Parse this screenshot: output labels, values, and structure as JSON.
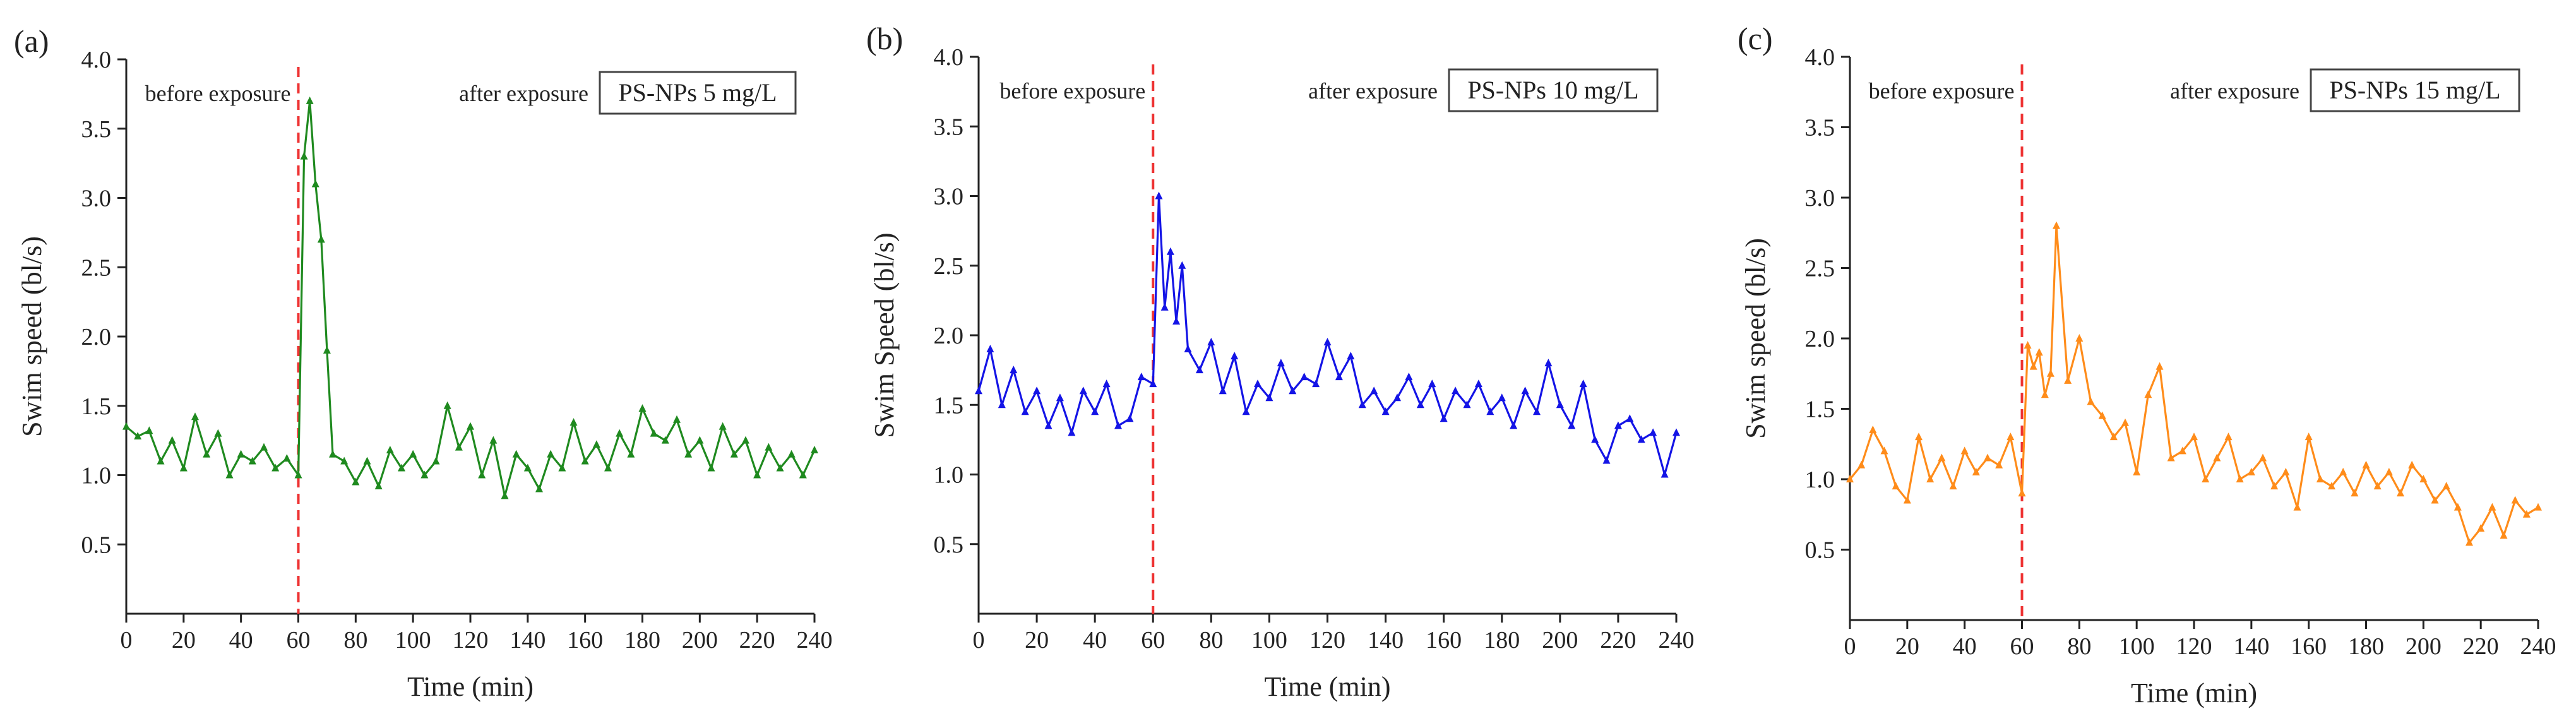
{
  "chart_data": [
    {
      "type": "line",
      "panel_label": "(a)",
      "title": "",
      "xlabel": "Time (min)",
      "ylabel": "Swim speed (bl/s)",
      "xlim": [
        0,
        240
      ],
      "ylim": [
        0,
        4.0
      ],
      "x_ticks": [
        0,
        20,
        40,
        60,
        80,
        100,
        120,
        140,
        160,
        180,
        200,
        220,
        240
      ],
      "y_ticks": [
        0.5,
        1.0,
        1.5,
        2.0,
        2.5,
        3.0,
        3.5,
        4.0
      ],
      "y_tick_labels": [
        "0.5",
        "1.0",
        "1.5",
        "2.0",
        "2.5",
        "3.0",
        "3.5",
        "4.0"
      ],
      "annotation_left": "before exposure",
      "annotation_right": "after exposure",
      "legend": "PS-NPs 5 mg/L",
      "exposure_time": 60,
      "color": "#1f8a1f",
      "series": [
        {
          "name": "PS-NPs 5 mg/L",
          "x": [
            0,
            4,
            8,
            12,
            16,
            20,
            24,
            28,
            32,
            36,
            40,
            44,
            48,
            52,
            56,
            60,
            62,
            64,
            66,
            68,
            70,
            72,
            76,
            80,
            84,
            88,
            92,
            96,
            100,
            104,
            108,
            112,
            116,
            120,
            124,
            128,
            132,
            136,
            140,
            144,
            148,
            152,
            156,
            160,
            164,
            168,
            172,
            176,
            180,
            184,
            188,
            192,
            196,
            200,
            204,
            208,
            212,
            216,
            220,
            224,
            228,
            232,
            236,
            240
          ],
          "values": [
            1.35,
            1.28,
            1.32,
            1.1,
            1.25,
            1.05,
            1.42,
            1.15,
            1.3,
            1.0,
            1.15,
            1.1,
            1.2,
            1.05,
            1.12,
            1.0,
            3.3,
            3.7,
            3.1,
            2.7,
            1.9,
            1.15,
            1.1,
            0.95,
            1.1,
            0.92,
            1.18,
            1.05,
            1.15,
            1.0,
            1.1,
            1.5,
            1.2,
            1.35,
            1.0,
            1.25,
            0.85,
            1.15,
            1.05,
            0.9,
            1.15,
            1.05,
            1.38,
            1.1,
            1.22,
            1.05,
            1.3,
            1.15,
            1.48,
            1.3,
            1.25,
            1.4,
            1.15,
            1.25,
            1.05,
            1.35,
            1.15,
            1.25,
            1.0,
            1.2,
            1.05,
            1.15,
            1.0,
            1.18
          ]
        }
      ]
    },
    {
      "type": "line",
      "panel_label": "(b)",
      "title": "",
      "xlabel": "Time (min)",
      "ylabel": "Swim Speed (bl/s)",
      "xlim": [
        0,
        240
      ],
      "ylim": [
        0,
        4.0
      ],
      "x_ticks": [
        0,
        20,
        40,
        60,
        80,
        100,
        120,
        140,
        160,
        180,
        200,
        220,
        240
      ],
      "y_ticks": [
        0.5,
        1.0,
        1.5,
        2.0,
        2.5,
        3.0,
        3.5,
        4.0
      ],
      "y_tick_labels": [
        "0.5",
        "1.0",
        "1.5",
        "2.0",
        "2.5",
        "3.0",
        "3.5",
        "4.0"
      ],
      "annotation_left": "before exposure",
      "annotation_right": "after exposure",
      "legend": "PS-NPs 10 mg/L",
      "exposure_time": 60,
      "color": "#1414e6",
      "series": [
        {
          "name": "PS-NPs 10 mg/L",
          "x": [
            0,
            4,
            8,
            12,
            16,
            20,
            24,
            28,
            32,
            36,
            40,
            44,
            48,
            52,
            56,
            60,
            62,
            64,
            66,
            68,
            70,
            72,
            76,
            80,
            84,
            88,
            92,
            96,
            100,
            104,
            108,
            112,
            116,
            120,
            124,
            128,
            132,
            136,
            140,
            144,
            148,
            152,
            156,
            160,
            164,
            168,
            172,
            176,
            180,
            184,
            188,
            192,
            196,
            200,
            204,
            208,
            212,
            216,
            220,
            224,
            228,
            232,
            236,
            240
          ],
          "values": [
            1.6,
            1.9,
            1.5,
            1.75,
            1.45,
            1.6,
            1.35,
            1.55,
            1.3,
            1.6,
            1.45,
            1.65,
            1.35,
            1.4,
            1.7,
            1.65,
            3.0,
            2.2,
            2.6,
            2.1,
            2.5,
            1.9,
            1.75,
            1.95,
            1.6,
            1.85,
            1.45,
            1.65,
            1.55,
            1.8,
            1.6,
            1.7,
            1.65,
            1.95,
            1.7,
            1.85,
            1.5,
            1.6,
            1.45,
            1.55,
            1.7,
            1.5,
            1.65,
            1.4,
            1.6,
            1.5,
            1.65,
            1.45,
            1.55,
            1.35,
            1.6,
            1.45,
            1.8,
            1.5,
            1.35,
            1.65,
            1.25,
            1.1,
            1.35,
            1.4,
            1.25,
            1.3,
            1.0,
            1.3
          ]
        }
      ]
    },
    {
      "type": "line",
      "panel_label": "(c)",
      "title": "",
      "xlabel": "Time (min)",
      "ylabel": "Swim speed (bl/s)",
      "xlim": [
        0,
        240
      ],
      "ylim": [
        0,
        4.0
      ],
      "x_ticks": [
        0,
        20,
        40,
        60,
        80,
        100,
        120,
        140,
        160,
        180,
        200,
        220,
        240
      ],
      "y_ticks": [
        0.5,
        1.0,
        1.5,
        2.0,
        2.5,
        3.0,
        3.5,
        4.0
      ],
      "y_tick_labels": [
        "0.5",
        "1.0",
        "1.5",
        "2.0",
        "2.5",
        "3.0",
        "3.5",
        "4.0"
      ],
      "annotation_left": "before exposure",
      "annotation_right": "after exposure",
      "legend": "PS-NPs 15 mg/L",
      "exposure_time": 60,
      "color": "#ff8c1a",
      "series": [
        {
          "name": "PS-NPs 15 mg/L",
          "x": [
            0,
            4,
            8,
            12,
            16,
            20,
            24,
            28,
            32,
            36,
            40,
            44,
            48,
            52,
            56,
            60,
            62,
            64,
            66,
            68,
            70,
            72,
            76,
            80,
            84,
            88,
            92,
            96,
            100,
            104,
            108,
            112,
            116,
            120,
            124,
            128,
            132,
            136,
            140,
            144,
            148,
            152,
            156,
            160,
            164,
            168,
            172,
            176,
            180,
            184,
            188,
            192,
            196,
            200,
            204,
            208,
            212,
            216,
            220,
            224,
            228,
            232,
            236,
            240
          ],
          "values": [
            1.0,
            1.1,
            1.35,
            1.2,
            0.95,
            0.85,
            1.3,
            1.0,
            1.15,
            0.95,
            1.2,
            1.05,
            1.15,
            1.1,
            1.3,
            0.9,
            1.95,
            1.8,
            1.9,
            1.6,
            1.75,
            2.8,
            1.7,
            2.0,
            1.55,
            1.45,
            1.3,
            1.4,
            1.05,
            1.6,
            1.8,
            1.15,
            1.2,
            1.3,
            1.0,
            1.15,
            1.3,
            1.0,
            1.05,
            1.15,
            0.95,
            1.05,
            0.8,
            1.3,
            1.0,
            0.95,
            1.05,
            0.9,
            1.1,
            0.95,
            1.05,
            0.9,
            1.1,
            1.0,
            0.85,
            0.95,
            0.8,
            0.55,
            0.65,
            0.8,
            0.6,
            0.85,
            0.75,
            0.8
          ]
        }
      ]
    }
  ]
}
